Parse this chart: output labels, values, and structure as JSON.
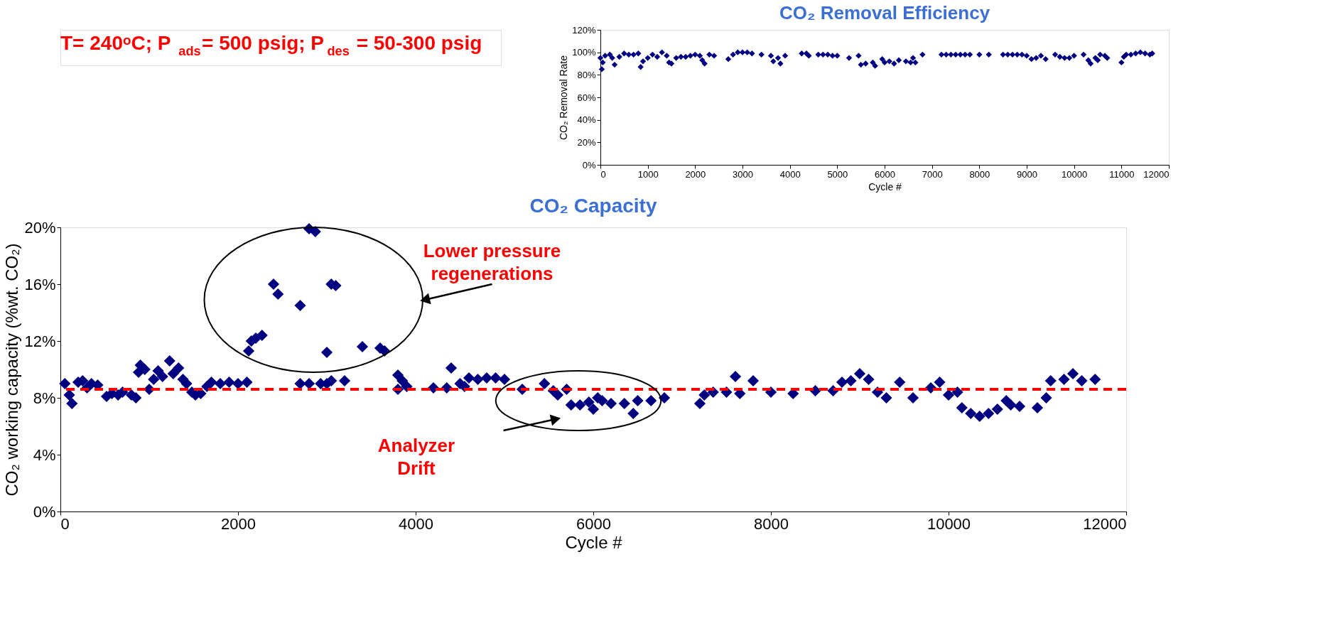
{
  "chart_data": [
    {
      "type": "scatter",
      "title": "T= 240ᵒC; P$_{ads}$= 500 psig; P$_{des}$ = 50-300 psig",
      "subtitle": "CO₂ Capacity",
      "xlabel": "Cycle #",
      "ylabel": "CO₂ working capacity (%wt. CO₂)",
      "marker": "diamond",
      "grid": false,
      "x": [
        50,
        100,
        130,
        200,
        250,
        300,
        350,
        420,
        520,
        580,
        650,
        700,
        800,
        850,
        880,
        900,
        950,
        1000,
        1050,
        1100,
        1150,
        1230,
        1270,
        1330,
        1380,
        1420,
        1480,
        1520,
        1580,
        1650,
        1700,
        1800,
        1900,
        2000,
        2100,
        2120,
        2150,
        2200,
        2270,
        2400,
        2450,
        2700,
        2800,
        2870,
        2930,
        3000,
        3050,
        3100,
        3200,
        3400,
        3600,
        3650,
        2700,
        2800,
        3000,
        3050,
        3800,
        3850,
        3800,
        3900,
        4200,
        4350,
        4400,
        4500,
        4550,
        4600,
        4700,
        4800,
        4900,
        5000,
        5200,
        5450,
        5550,
        5600,
        5700,
        5750,
        5850,
        5950,
        6000,
        6050,
        6100,
        6200,
        6350,
        6450,
        6500,
        6650,
        6800,
        7200,
        7250,
        7350,
        7500,
        7600,
        7650,
        7800,
        8000,
        8250,
        8500,
        8700,
        8800,
        8900,
        9000,
        9100,
        9200,
        9300,
        9450,
        9600,
        9800,
        9900,
        10000,
        10100,
        10150,
        10250,
        10350,
        10450,
        10550,
        10650,
        10700,
        10800,
        11000,
        11100,
        11150,
        11300,
        11400,
        11500,
        11650
      ],
      "series": [
        {
          "color": "#000080",
          "values": [
            9.0,
            8.2,
            7.6,
            9.1,
            9.2,
            8.7,
            9.0,
            8.9,
            8.1,
            8.3,
            8.2,
            8.4,
            8.2,
            8.0,
            9.8,
            10.3,
            10.0,
            8.6,
            9.3,
            9.9,
            9.5,
            10.6,
            9.7,
            10.1,
            9.3,
            9.0,
            8.4,
            8.2,
            8.3,
            8.8,
            9.1,
            9.0,
            9.1,
            9.0,
            9.1,
            11.3,
            12.0,
            12.2,
            12.4,
            16.0,
            15.3,
            14.5,
            19.9,
            19.7,
            9.0,
            11.2,
            16.0,
            15.9,
            9.2,
            11.6,
            11.5,
            11.3,
            9.0,
            9.0,
            9.0,
            9.2,
            9.6,
            9.2,
            8.6,
            8.8,
            8.7,
            8.7,
            10.1,
            9.0,
            8.8,
            9.4,
            9.3,
            9.4,
            9.4,
            9.3,
            8.6,
            9.0,
            8.5,
            8.2,
            8.6,
            7.5,
            7.5,
            7.7,
            7.2,
            8.0,
            7.8,
            7.6,
            7.6,
            6.9,
            7.8,
            7.8,
            8.0,
            7.6,
            8.2,
            8.4,
            8.4,
            9.5,
            8.3,
            9.2,
            8.4,
            8.3,
            8.5,
            8.5,
            9.1,
            9.2,
            9.7,
            9.3,
            8.4,
            8.0,
            9.1,
            8.0,
            8.7,
            9.1,
            8.2,
            8.4,
            7.3,
            6.9,
            6.7,
            6.9,
            7.2,
            7.8,
            7.5,
            7.4,
            7.3,
            8.0,
            9.2,
            9.3,
            9.7,
            9.2,
            9.3
          ]
        }
      ],
      "xlim": [
        0,
        12000
      ],
      "xticks": [
        0,
        2000,
        4000,
        6000,
        8000,
        10000,
        12000
      ],
      "ylim": [
        0,
        20
      ],
      "yticks": [
        {
          "value": 0,
          "label": "0%"
        },
        {
          "value": 4,
          "label": "4%"
        },
        {
          "value": 8,
          "label": "8%"
        },
        {
          "value": 12,
          "label": "12%"
        },
        {
          "value": 16,
          "label": "16%"
        },
        {
          "value": 20,
          "label": "20%"
        }
      ],
      "ref_lines": [
        {
          "axis": "y",
          "value": 8.6,
          "color": "#ff0000",
          "line_style": "dashed"
        }
      ],
      "annotations": [
        "Lower pressure regenerations",
        "Analyzer Drift"
      ]
    },
    {
      "type": "scatter",
      "title": "CO₂ Removal Efficiency",
      "xlabel": "Cycle #",
      "ylabel": "CO₂ Removal Rate",
      "marker": "diamond",
      "grid": false,
      "x": [
        0,
        30,
        50,
        100,
        200,
        250,
        300,
        400,
        500,
        600,
        700,
        800,
        850,
        900,
        1000,
        1100,
        1200,
        1300,
        1400,
        1450,
        1500,
        1600,
        1700,
        1800,
        1900,
        2000,
        2100,
        2150,
        2200,
        2300,
        2400,
        2700,
        2800,
        2900,
        3000,
        3100,
        3200,
        3400,
        3600,
        3650,
        3750,
        3800,
        3900,
        4250,
        4350,
        4400,
        4600,
        4700,
        4800,
        4900,
        5000,
        5250,
        5450,
        5500,
        5600,
        5750,
        5800,
        5950,
        6000,
        6100,
        6200,
        6300,
        6450,
        6550,
        6600,
        6650,
        6800,
        7200,
        7300,
        7400,
        7500,
        7600,
        7700,
        7800,
        8000,
        8200,
        8500,
        8600,
        8700,
        8800,
        8900,
        9000,
        9100,
        9200,
        9300,
        9400,
        9600,
        9700,
        9800,
        9900,
        10000,
        10200,
        10300,
        10350,
        10450,
        10500,
        10550,
        10650,
        10700,
        11000,
        11050,
        11100,
        11200,
        11300,
        11400,
        11500,
        11600,
        11650
      ],
      "series": [
        {
          "color": "#000080",
          "values": [
            95,
            85,
            91,
            97,
            98,
            95,
            89,
            96,
            99,
            98,
            98,
            99,
            87,
            92,
            95,
            98,
            96,
            100,
            97,
            91,
            90,
            95,
            96,
            96,
            97,
            98,
            97,
            93,
            90,
            98,
            97,
            94,
            98,
            100,
            100,
            100,
            99,
            98,
            97,
            92,
            95,
            90,
            97,
            99,
            99,
            97,
            98,
            98,
            98,
            97,
            97,
            95,
            97,
            89,
            90,
            91,
            88,
            94,
            91,
            92,
            90,
            93,
            92,
            91,
            95,
            91,
            98,
            98,
            98,
            98,
            98,
            98,
            98,
            98,
            98,
            98,
            98,
            98,
            98,
            98,
            98,
            97,
            94,
            95,
            97,
            94,
            98,
            96,
            95,
            95,
            97,
            98,
            93,
            90,
            95,
            93,
            98,
            97,
            95,
            91,
            96,
            98,
            98,
            99,
            100,
            99,
            98,
            99
          ]
        }
      ],
      "xlim": [
        0,
        12000
      ],
      "xticks": [
        0,
        1000,
        2000,
        3000,
        4000,
        5000,
        6000,
        7000,
        8000,
        9000,
        10000,
        11000,
        12000
      ],
      "ylim": [
        0,
        120
      ],
      "yticks": [
        {
          "value": 0,
          "label": "0%"
        },
        {
          "value": 20,
          "label": "20%"
        },
        {
          "value": 40,
          "label": "40%"
        },
        {
          "value": 60,
          "label": "60%"
        },
        {
          "value": 80,
          "label": "80%"
        },
        {
          "value": 100,
          "label": "100%"
        },
        {
          "value": 120,
          "label": "120%"
        }
      ]
    }
  ]
}
